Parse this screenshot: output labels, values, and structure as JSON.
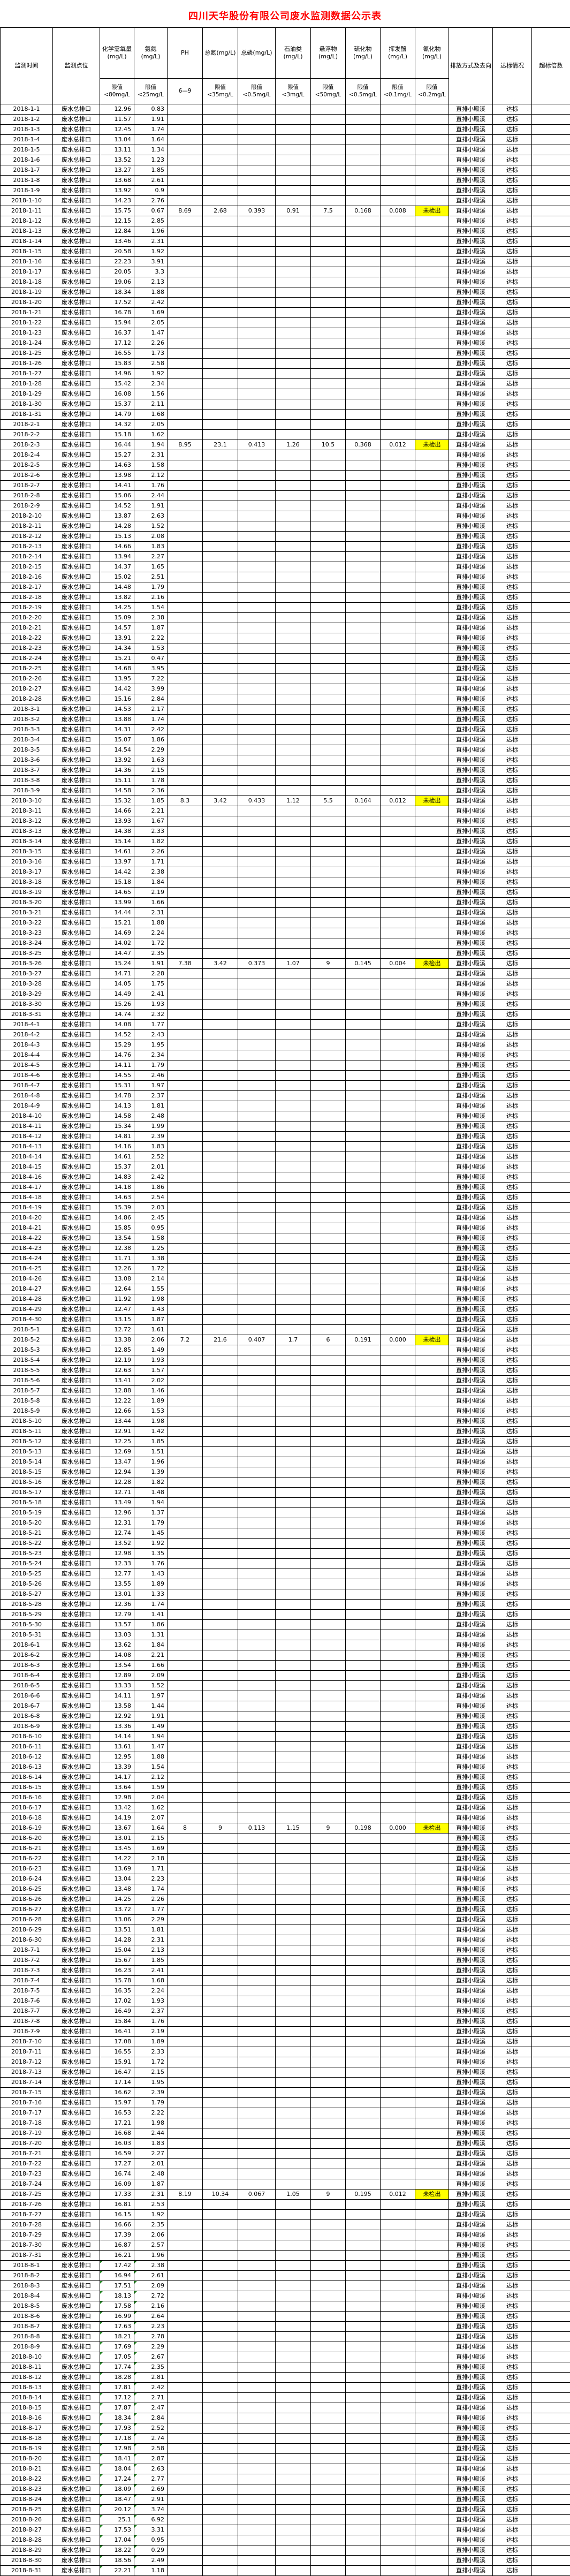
{
  "title": "四川天华股份有限公司废水监测数据公示表",
  "accent_colors": {
    "title_red": "#FF0000",
    "not_detected_yellow": "#FFFF00",
    "corner_marker_green": "#1E7B1E",
    "grid_black": "#000000"
  },
  "table": {
    "columns": [
      {
        "label": "监测时间",
        "limit": null
      },
      {
        "label": "监测点位",
        "limit": null
      },
      {
        "label": "化学需氧量(mg/L)",
        "limit": "限值<80mg/L"
      },
      {
        "label": "氨氮(mg/L)",
        "limit": "限值<25mg/L"
      },
      {
        "label": "PH",
        "limit": "6—9"
      },
      {
        "label": "总氮(mg/L)",
        "limit": "限值<35mg/L"
      },
      {
        "label": "总磷(mg/L)",
        "limit": "限值<0.5mg/L"
      },
      {
        "label": "石油类(mg/L)",
        "limit": "限值<3mg/L"
      },
      {
        "label": "悬浮物(mg/L)",
        "limit": "限值<50mg/L"
      },
      {
        "label": "硫化物(mg/L)",
        "limit": "限值<0.5mg/L"
      },
      {
        "label": "挥发酚(mg/L)",
        "limit": "限值<0.1mg/L"
      },
      {
        "label": "氰化物(mg/L)",
        "limit": "限值<0.2mg/L"
      },
      {
        "label": "排放方式及去向",
        "limit": null
      },
      {
        "label": "达标情况",
        "limit": null
      },
      {
        "label": "超标倍数",
        "limit": null
      }
    ],
    "defaults": {
      "point": "废水总排口",
      "discharge": "直排小殿溪",
      "status": "达标",
      "overrun": ""
    },
    "not_detected_label": "未检出",
    "green_triangle_prefix": "2018-8",
    "full_analysis": {
      "2018-1-11": [
        "8.69",
        "2.68",
        "0.393",
        "0.91",
        "7.5",
        "0.168",
        "0.008"
      ],
      "2018-2-3": [
        "8.95",
        "23.1",
        "0.413",
        "1.26",
        "10.5",
        "0.368",
        "0.012"
      ],
      "2018-3-10": [
        "8.3",
        "3.42",
        "0.433",
        "1.12",
        "5.5",
        "0.164",
        "0.012"
      ],
      "2018-3-26": [
        "7.38",
        "3.42",
        "0.373",
        "1.07",
        "9",
        "0.145",
        "0.004"
      ],
      "2018-5-2": [
        "7.2",
        "21.6",
        "0.407",
        "1.7",
        "6",
        "0.191",
        "0.000"
      ],
      "2018-6-19": [
        "8",
        "9",
        "0.113",
        "1.15",
        "9",
        "0.198",
        "0.000"
      ],
      "2018-7-25": [
        "8.19",
        "10.34",
        "0.067",
        "1.05",
        "9",
        "0.195",
        "0.012"
      ]
    },
    "rows": [
      [
        "2018-1-1",
        "12.96",
        "0.83"
      ],
      [
        "2018-1-2",
        "11.57",
        "1.91"
      ],
      [
        "2018-1-3",
        "12.45",
        "1.74"
      ],
      [
        "2018-1-4",
        "13.04",
        "1.64"
      ],
      [
        "2018-1-5",
        "13.11",
        "1.34"
      ],
      [
        "2018-1-6",
        "13.52",
        "1.23"
      ],
      [
        "2018-1-7",
        "13.27",
        "1.85"
      ],
      [
        "2018-1-8",
        "13.68",
        "2.61"
      ],
      [
        "2018-1-9",
        "13.92",
        "0.9"
      ],
      [
        "2018-1-10",
        "14.23",
        "2.76"
      ],
      [
        "2018-1-11",
        "15.75",
        "0.67"
      ],
      [
        "2018-1-12",
        "12.15",
        "2.85"
      ],
      [
        "2018-1-13",
        "12.84",
        "1.96"
      ],
      [
        "2018-1-14",
        "13.46",
        "2.31"
      ],
      [
        "2018-1-15",
        "20.58",
        "1.92"
      ],
      [
        "2018-1-16",
        "22.23",
        "3.91"
      ],
      [
        "2018-1-17",
        "20.05",
        "3.3"
      ],
      [
        "2018-1-18",
        "19.06",
        "2.13"
      ],
      [
        "2018-1-19",
        "18.34",
        "1.88"
      ],
      [
        "2018-1-20",
        "17.52",
        "2.42"
      ],
      [
        "2018-1-21",
        "16.78",
        "1.69"
      ],
      [
        "2018-1-22",
        "15.94",
        "2.05"
      ],
      [
        "2018-1-23",
        "16.37",
        "1.47"
      ],
      [
        "2018-1-24",
        "17.12",
        "2.26"
      ],
      [
        "2018-1-25",
        "16.55",
        "1.73"
      ],
      [
        "2018-1-26",
        "15.83",
        "2.58"
      ],
      [
        "2018-1-27",
        "14.96",
        "1.92"
      ],
      [
        "2018-1-28",
        "15.42",
        "2.34"
      ],
      [
        "2018-1-29",
        "16.08",
        "1.56"
      ],
      [
        "2018-1-30",
        "15.37",
        "2.11"
      ],
      [
        "2018-1-31",
        "14.79",
        "1.68"
      ],
      [
        "2018-2-1",
        "14.32",
        "2.05"
      ],
      [
        "2018-2-2",
        "15.18",
        "1.62"
      ],
      [
        "2018-2-3",
        "16.44",
        "1.94"
      ],
      [
        "2018-2-4",
        "15.27",
        "2.31"
      ],
      [
        "2018-2-5",
        "14.63",
        "1.58"
      ],
      [
        "2018-2-6",
        "13.98",
        "2.12"
      ],
      [
        "2018-2-7",
        "14.41",
        "1.76"
      ],
      [
        "2018-2-8",
        "15.06",
        "2.44"
      ],
      [
        "2018-2-9",
        "14.52",
        "1.91"
      ],
      [
        "2018-2-10",
        "13.87",
        "2.63"
      ],
      [
        "2018-2-11",
        "14.28",
        "1.52"
      ],
      [
        "2018-2-12",
        "15.13",
        "2.08"
      ],
      [
        "2018-2-13",
        "14.66",
        "1.83"
      ],
      [
        "2018-2-14",
        "13.94",
        "2.27"
      ],
      [
        "2018-2-15",
        "14.37",
        "1.65"
      ],
      [
        "2018-2-16",
        "15.02",
        "2.51"
      ],
      [
        "2018-2-17",
        "14.48",
        "1.79"
      ],
      [
        "2018-2-18",
        "13.82",
        "2.16"
      ],
      [
        "2018-2-19",
        "14.25",
        "1.54"
      ],
      [
        "2018-2-20",
        "15.09",
        "2.38"
      ],
      [
        "2018-2-21",
        "14.57",
        "1.87"
      ],
      [
        "2018-2-22",
        "13.91",
        "2.22"
      ],
      [
        "2018-2-23",
        "14.34",
        "1.53"
      ],
      [
        "2018-2-24",
        "15.21",
        "0.47"
      ],
      [
        "2018-2-25",
        "14.68",
        "3.95"
      ],
      [
        "2018-2-26",
        "13.95",
        "7.22"
      ],
      [
        "2018-2-27",
        "14.42",
        "3.99"
      ],
      [
        "2018-2-28",
        "15.16",
        "2.84"
      ],
      [
        "2018-3-1",
        "14.53",
        "2.17"
      ],
      [
        "2018-3-2",
        "13.88",
        "1.74"
      ],
      [
        "2018-3-3",
        "14.31",
        "2.42"
      ],
      [
        "2018-3-4",
        "15.07",
        "1.86"
      ],
      [
        "2018-3-5",
        "14.54",
        "2.29"
      ],
      [
        "2018-3-6",
        "13.92",
        "1.63"
      ],
      [
        "2018-3-7",
        "14.36",
        "2.15"
      ],
      [
        "2018-3-8",
        "15.11",
        "1.78"
      ],
      [
        "2018-3-9",
        "14.58",
        "2.36"
      ],
      [
        "2018-3-10",
        "15.32",
        "1.85"
      ],
      [
        "2018-3-11",
        "14.66",
        "2.21"
      ],
      [
        "2018-3-12",
        "13.93",
        "1.67"
      ],
      [
        "2018-3-13",
        "14.38",
        "2.33"
      ],
      [
        "2018-3-14",
        "15.14",
        "1.82"
      ],
      [
        "2018-3-15",
        "14.61",
        "2.26"
      ],
      [
        "2018-3-16",
        "13.97",
        "1.71"
      ],
      [
        "2018-3-17",
        "14.42",
        "2.38"
      ],
      [
        "2018-3-18",
        "15.18",
        "1.84"
      ],
      [
        "2018-3-19",
        "14.65",
        "2.19"
      ],
      [
        "2018-3-20",
        "13.99",
        "1.66"
      ],
      [
        "2018-3-21",
        "14.44",
        "2.31"
      ],
      [
        "2018-3-22",
        "15.21",
        "1.88"
      ],
      [
        "2018-3-23",
        "14.69",
        "2.24"
      ],
      [
        "2018-3-24",
        "14.02",
        "1.72"
      ],
      [
        "2018-3-25",
        "14.47",
        "2.35"
      ],
      [
        "2018-3-26",
        "15.24",
        "1.91"
      ],
      [
        "2018-3-27",
        "14.71",
        "2.28"
      ],
      [
        "2018-3-28",
        "14.05",
        "1.75"
      ],
      [
        "2018-3-29",
        "14.49",
        "2.41"
      ],
      [
        "2018-3-30",
        "15.26",
        "1.93"
      ],
      [
        "2018-3-31",
        "14.74",
        "2.32"
      ],
      [
        "2018-4-1",
        "14.08",
        "1.77"
      ],
      [
        "2018-4-2",
        "14.52",
        "2.43"
      ],
      [
        "2018-4-3",
        "15.29",
        "1.95"
      ],
      [
        "2018-4-4",
        "14.76",
        "2.34"
      ],
      [
        "2018-4-5",
        "14.11",
        "1.79"
      ],
      [
        "2018-4-6",
        "14.55",
        "2.46"
      ],
      [
        "2018-4-7",
        "15.31",
        "1.97"
      ],
      [
        "2018-4-8",
        "14.78",
        "2.37"
      ],
      [
        "2018-4-9",
        "14.13",
        "1.81"
      ],
      [
        "2018-4-10",
        "14.58",
        "2.48"
      ],
      [
        "2018-4-11",
        "15.34",
        "1.99"
      ],
      [
        "2018-4-12",
        "14.81",
        "2.39"
      ],
      [
        "2018-4-13",
        "14.16",
        "1.83"
      ],
      [
        "2018-4-14",
        "14.61",
        "2.52"
      ],
      [
        "2018-4-15",
        "15.37",
        "2.01"
      ],
      [
        "2018-4-16",
        "14.83",
        "2.42"
      ],
      [
        "2018-4-17",
        "14.18",
        "1.86"
      ],
      [
        "2018-4-18",
        "14.63",
        "2.54"
      ],
      [
        "2018-4-19",
        "15.39",
        "2.03"
      ],
      [
        "2018-4-20",
        "14.86",
        "2.45"
      ],
      [
        "2018-4-21",
        "15.85",
        "0.95"
      ],
      [
        "2018-4-22",
        "13.54",
        "1.58"
      ],
      [
        "2018-4-23",
        "12.38",
        "1.25"
      ],
      [
        "2018-4-24",
        "11.71",
        "1.38"
      ],
      [
        "2018-4-25",
        "12.26",
        "1.72"
      ],
      [
        "2018-4-26",
        "13.08",
        "2.14"
      ],
      [
        "2018-4-27",
        "12.64",
        "1.55"
      ],
      [
        "2018-4-28",
        "11.92",
        "1.98"
      ],
      [
        "2018-4-29",
        "12.47",
        "1.43"
      ],
      [
        "2018-4-30",
        "13.15",
        "1.87"
      ],
      [
        "2018-5-1",
        "12.72",
        "1.61"
      ],
      [
        "2018-5-2",
        "13.38",
        "2.06"
      ],
      [
        "2018-5-3",
        "12.85",
        "1.49"
      ],
      [
        "2018-5-4",
        "12.19",
        "1.93"
      ],
      [
        "2018-5-5",
        "12.63",
        "1.57"
      ],
      [
        "2018-5-6",
        "13.41",
        "2.02"
      ],
      [
        "2018-5-7",
        "12.88",
        "1.46"
      ],
      [
        "2018-5-8",
        "12.22",
        "1.89"
      ],
      [
        "2018-5-9",
        "12.66",
        "1.53"
      ],
      [
        "2018-5-10",
        "13.44",
        "1.98"
      ],
      [
        "2018-5-11",
        "12.91",
        "1.42"
      ],
      [
        "2018-5-12",
        "12.25",
        "1.85"
      ],
      [
        "2018-5-13",
        "12.69",
        "1.51"
      ],
      [
        "2018-5-14",
        "13.47",
        "1.96"
      ],
      [
        "2018-5-15",
        "12.94",
        "1.39"
      ],
      [
        "2018-5-16",
        "12.28",
        "1.82"
      ],
      [
        "2018-5-17",
        "12.71",
        "1.48"
      ],
      [
        "2018-5-18",
        "13.49",
        "1.94"
      ],
      [
        "2018-5-19",
        "12.96",
        "1.37"
      ],
      [
        "2018-5-20",
        "12.31",
        "1.79"
      ],
      [
        "2018-5-21",
        "12.74",
        "1.45"
      ],
      [
        "2018-5-22",
        "13.52",
        "1.92"
      ],
      [
        "2018-5-23",
        "12.98",
        "1.35"
      ],
      [
        "2018-5-24",
        "12.33",
        "1.76"
      ],
      [
        "2018-5-25",
        "12.77",
        "1.43"
      ],
      [
        "2018-5-26",
        "13.55",
        "1.89"
      ],
      [
        "2018-5-27",
        "13.01",
        "1.33"
      ],
      [
        "2018-5-28",
        "12.36",
        "1.74"
      ],
      [
        "2018-5-29",
        "12.79",
        "1.41"
      ],
      [
        "2018-5-30",
        "13.57",
        "1.86"
      ],
      [
        "2018-5-31",
        "13.03",
        "1.31"
      ],
      [
        "2018-6-1",
        "13.62",
        "1.84"
      ],
      [
        "2018-6-2",
        "14.08",
        "2.21"
      ],
      [
        "2018-6-3",
        "13.54",
        "1.66"
      ],
      [
        "2018-6-4",
        "12.89",
        "2.09"
      ],
      [
        "2018-6-5",
        "13.33",
        "1.52"
      ],
      [
        "2018-6-6",
        "14.11",
        "1.97"
      ],
      [
        "2018-6-7",
        "13.58",
        "1.44"
      ],
      [
        "2018-6-8",
        "12.92",
        "1.91"
      ],
      [
        "2018-6-9",
        "13.36",
        "1.49"
      ],
      [
        "2018-6-10",
        "14.14",
        "1.94"
      ],
      [
        "2018-6-11",
        "13.61",
        "1.47"
      ],
      [
        "2018-6-12",
        "12.95",
        "1.88"
      ],
      [
        "2018-6-13",
        "13.39",
        "1.54"
      ],
      [
        "2018-6-14",
        "14.17",
        "2.12"
      ],
      [
        "2018-6-15",
        "13.64",
        "1.59"
      ],
      [
        "2018-6-16",
        "12.98",
        "2.04"
      ],
      [
        "2018-6-17",
        "13.42",
        "1.62"
      ],
      [
        "2018-6-18",
        "14.19",
        "2.07"
      ],
      [
        "2018-6-19",
        "13.67",
        "1.64"
      ],
      [
        "2018-6-20",
        "13.01",
        "2.15"
      ],
      [
        "2018-6-21",
        "13.45",
        "1.69"
      ],
      [
        "2018-6-22",
        "14.22",
        "2.18"
      ],
      [
        "2018-6-23",
        "13.69",
        "1.71"
      ],
      [
        "2018-6-24",
        "13.04",
        "2.23"
      ],
      [
        "2018-6-25",
        "13.48",
        "1.74"
      ],
      [
        "2018-6-26",
        "14.25",
        "2.26"
      ],
      [
        "2018-6-27",
        "13.72",
        "1.77"
      ],
      [
        "2018-6-28",
        "13.06",
        "2.29"
      ],
      [
        "2018-6-29",
        "13.51",
        "1.81"
      ],
      [
        "2018-6-30",
        "14.28",
        "2.31"
      ],
      [
        "2018-7-1",
        "15.04",
        "2.13"
      ],
      [
        "2018-7-2",
        "15.67",
        "1.85"
      ],
      [
        "2018-7-3",
        "16.23",
        "2.41"
      ],
      [
        "2018-7-4",
        "15.78",
        "1.68"
      ],
      [
        "2018-7-5",
        "16.35",
        "2.24"
      ],
      [
        "2018-7-6",
        "17.02",
        "1.93"
      ],
      [
        "2018-7-7",
        "16.49",
        "2.37"
      ],
      [
        "2018-7-8",
        "15.84",
        "1.76"
      ],
      [
        "2018-7-9",
        "16.41",
        "2.19"
      ],
      [
        "2018-7-10",
        "17.08",
        "1.89"
      ],
      [
        "2018-7-11",
        "16.55",
        "2.33"
      ],
      [
        "2018-7-12",
        "15.91",
        "1.72"
      ],
      [
        "2018-7-13",
        "16.47",
        "2.15"
      ],
      [
        "2018-7-14",
        "17.14",
        "1.95"
      ],
      [
        "2018-7-15",
        "16.62",
        "2.39"
      ],
      [
        "2018-7-16",
        "15.97",
        "1.79"
      ],
      [
        "2018-7-17",
        "16.53",
        "2.22"
      ],
      [
        "2018-7-18",
        "17.21",
        "1.98"
      ],
      [
        "2018-7-19",
        "16.68",
        "2.44"
      ],
      [
        "2018-7-20",
        "16.03",
        "1.83"
      ],
      [
        "2018-7-21",
        "16.59",
        "2.27"
      ],
      [
        "2018-7-22",
        "17.27",
        "2.01"
      ],
      [
        "2018-7-23",
        "16.74",
        "2.48"
      ],
      [
        "2018-7-24",
        "16.09",
        "1.87"
      ],
      [
        "2018-7-25",
        "17.33",
        "2.31"
      ],
      [
        "2018-7-26",
        "16.81",
        "2.53"
      ],
      [
        "2018-7-27",
        "16.15",
        "1.92"
      ],
      [
        "2018-7-28",
        "16.66",
        "2.35"
      ],
      [
        "2018-7-29",
        "17.39",
        "2.06"
      ],
      [
        "2018-7-30",
        "16.87",
        "2.57"
      ],
      [
        "2018-7-31",
        "16.21",
        "1.96"
      ],
      [
        "2018-8-1",
        "17.42",
        "2.38"
      ],
      [
        "2018-8-2",
        "16.94",
        "2.61"
      ],
      [
        "2018-8-3",
        "17.51",
        "2.09"
      ],
      [
        "2018-8-4",
        "18.13",
        "2.72"
      ],
      [
        "2018-8-5",
        "17.58",
        "2.16"
      ],
      [
        "2018-8-6",
        "16.99",
        "2.64"
      ],
      [
        "2018-8-7",
        "17.63",
        "2.23"
      ],
      [
        "2018-8-8",
        "18.21",
        "2.78"
      ],
      [
        "2018-8-9",
        "17.69",
        "2.29"
      ],
      [
        "2018-8-10",
        "17.05",
        "2.67"
      ],
      [
        "2018-8-11",
        "17.74",
        "2.35"
      ],
      [
        "2018-8-12",
        "18.28",
        "2.81"
      ],
      [
        "2018-8-13",
        "17.81",
        "2.42"
      ],
      [
        "2018-8-14",
        "17.12",
        "2.71"
      ],
      [
        "2018-8-15",
        "17.87",
        "2.47"
      ],
      [
        "2018-8-16",
        "18.34",
        "2.84"
      ],
      [
        "2018-8-17",
        "17.93",
        "2.52"
      ],
      [
        "2018-8-18",
        "17.18",
        "2.74"
      ],
      [
        "2018-8-19",
        "17.98",
        "2.58"
      ],
      [
        "2018-8-20",
        "18.41",
        "2.87"
      ],
      [
        "2018-8-21",
        "18.04",
        "2.63"
      ],
      [
        "2018-8-22",
        "17.24",
        "2.77"
      ],
      [
        "2018-8-23",
        "18.09",
        "2.69"
      ],
      [
        "2018-8-24",
        "18.47",
        "2.91"
      ],
      [
        "2018-8-25",
        "20.12",
        "3.74"
      ],
      [
        "2018-8-26",
        "25.1",
        "6.92"
      ],
      [
        "2018-8-27",
        "17.53",
        "3.31"
      ],
      [
        "2018-8-28",
        "17.04",
        "0.95"
      ],
      [
        "2018-8-29",
        "18.22",
        "0.29"
      ],
      [
        "2018-8-30",
        "18.56",
        "2.49"
      ],
      [
        "2018-8-31",
        "22.21",
        "1.18"
      ]
    ]
  }
}
